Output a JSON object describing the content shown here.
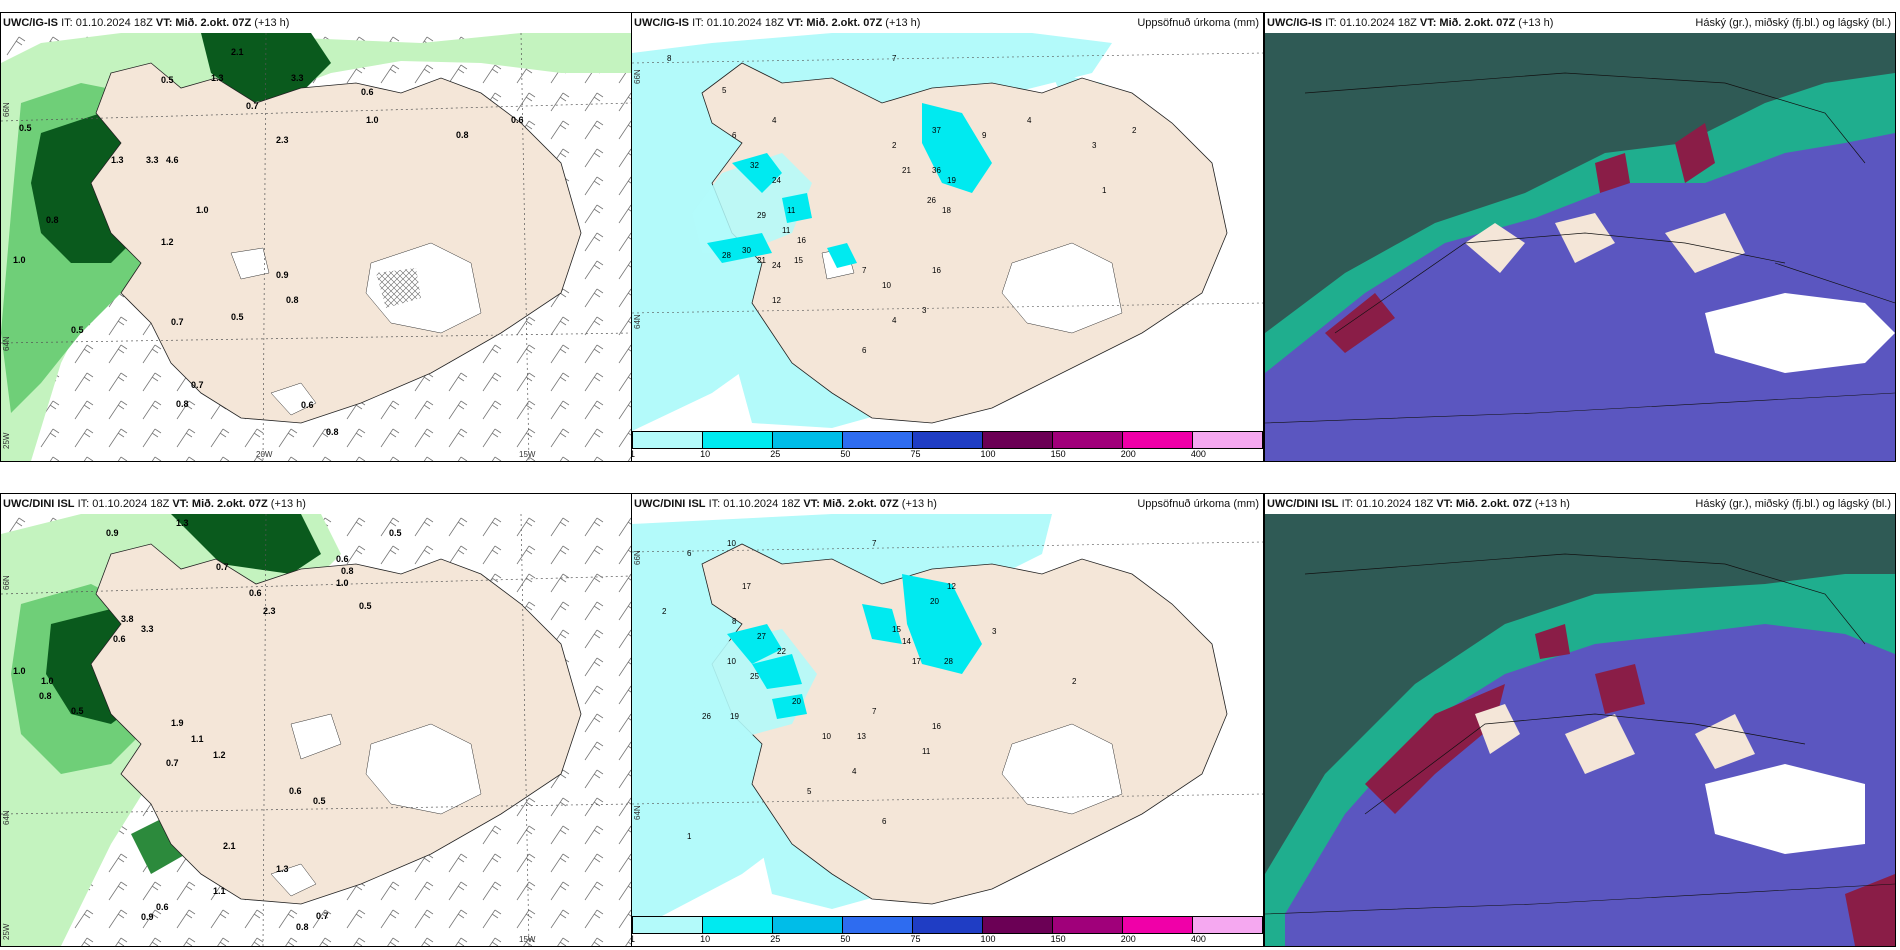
{
  "panels": {
    "top_left": {
      "model": "UWC/IG-IS",
      "it": "IT: 01.10.2024 18Z",
      "vt": "VT: Mið. 2.okt. 07Z",
      "lead": "(+13 h)",
      "right": ""
    },
    "top_mid": {
      "model": "UWC/IG-IS",
      "it": "IT: 01.10.2024 18Z",
      "vt": "VT: Mið. 2.okt. 07Z",
      "lead": "(+13 h)",
      "right": "Uppsöfnuð úrkoma (mm)"
    },
    "top_right": {
      "model": "UWC/IG-IS",
      "it": "IT: 01.10.2024 18Z",
      "vt": "VT: Mið. 2.okt. 07Z",
      "lead": "(+13 h)",
      "right": "Háský (gr.), miðský (fj.bl.) og lágský (bl.)"
    },
    "bot_left": {
      "model": "UWC/DINI ISL",
      "it": "IT: 01.10.2024 18Z",
      "vt": "VT: Mið. 2.okt. 07Z",
      "lead": "(+13 h)",
      "right": ""
    },
    "bot_mid": {
      "model": "UWC/DINI ISL",
      "it": "IT: 01.10.2024 18Z",
      "vt": "VT: Mið. 2.okt. 07Z",
      "lead": "(+13 h)",
      "right": "Uppsöfnuð úrkoma (mm)"
    },
    "bot_right": {
      "model": "UWC/DINI ISL",
      "it": "IT: 01.10.2024 18Z",
      "vt": "VT: Mið. 2.okt. 07Z",
      "lead": "(+13 h)",
      "right": "Háský (gr.), miðský (fj.bl.) og lágský (bl.)"
    }
  },
  "coords": {
    "n66": "66N",
    "n64": "64N",
    "w25": "25W",
    "w20": "20W",
    "w15": "15W"
  },
  "legend": {
    "ticks": [
      "1",
      "10",
      "25",
      "50",
      "75",
      "100",
      "150",
      "200",
      "400"
    ],
    "colors": [
      "#b3fafa",
      "#00eaf0",
      "#00bde8",
      "#2e6cf0",
      "#1f3dc4",
      "#6b0055",
      "#a0007a",
      "#f000a8",
      "#f5a8f0"
    ]
  },
  "colors": {
    "land": "#f4e6d8",
    "sea": "#ffffff",
    "precip_light": "#b3fafa",
    "precip_mid": "#00eaf0",
    "green_light": "#c4f3bf",
    "green_mid": "#6fcf78",
    "green_dark": "#0a5a1d",
    "cloud_dark": "#2f5a55",
    "cloud_blue": "#5b56c0",
    "cloud_teal": "#1fae8e",
    "cloud_red": "#8a1d47"
  },
  "labels": {
    "tl": [
      "2.1",
      "1.3",
      "3.3",
      "0.5",
      "0.7",
      "2.3",
      "0.6",
      "1.0",
      "0.8",
      "1.2",
      "0.5",
      "1.3",
      "3.3",
      "4.6",
      "0.8",
      "1.0",
      "0.9",
      "0.8",
      "1.0",
      "0.5",
      "0.7",
      "0.5",
      "0.8",
      "0.7",
      "0.6",
      "0.8",
      "0.6"
    ],
    "tm": [
      "8",
      "7",
      "5",
      "4",
      "11",
      "16",
      "6",
      "32",
      "24",
      "29",
      "11",
      "30",
      "28",
      "21",
      "24",
      "15",
      "12",
      "2",
      "37",
      "21",
      "36",
      "19",
      "26",
      "18",
      "9",
      "4",
      "3",
      "2",
      "1",
      "10",
      "16",
      "3",
      "6",
      "4",
      "7"
    ],
    "bl": [
      "0.9",
      "0.5",
      "1.3",
      "0.7",
      "0.6",
      "0.8",
      "1.0",
      "2.3",
      "0.5",
      "0.6",
      "3.3",
      "3.8",
      "1.0",
      "0.8",
      "1.0",
      "0.6",
      "0.5",
      "1.9",
      "1.1",
      "1.2",
      "0.7",
      "0.6",
      "0.5",
      "2.1",
      "1.1",
      "1.3",
      "0.8",
      "0.6",
      "0.7",
      "0.9"
    ],
    "bm": [
      "6",
      "10",
      "7",
      "8",
      "2",
      "17",
      "27",
      "22",
      "25",
      "10",
      "20",
      "15",
      "14",
      "17",
      "20",
      "28",
      "12",
      "26",
      "19",
      "13",
      "16",
      "11",
      "10",
      "4",
      "3",
      "2",
      "1",
      "7",
      "6",
      "5"
    ]
  }
}
